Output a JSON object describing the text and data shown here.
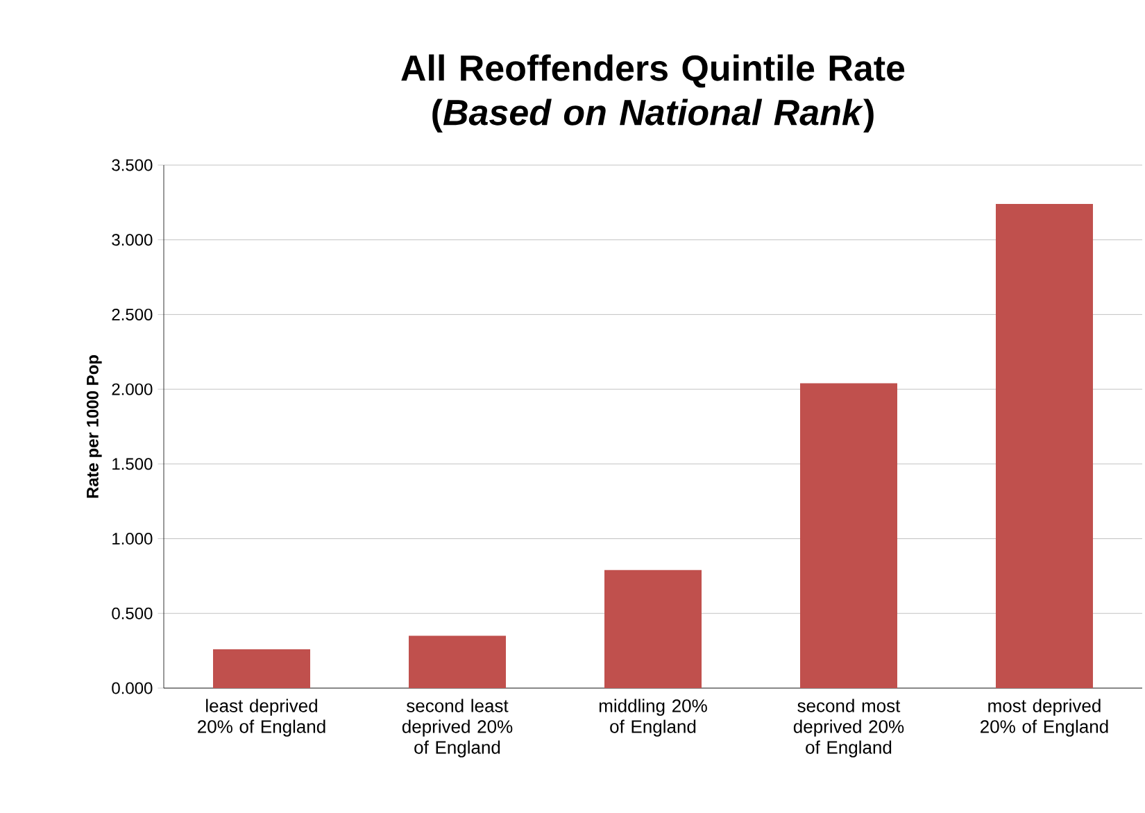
{
  "chart_data": {
    "type": "bar",
    "title": "All Reoffenders Quintile Rate (*Based on National Rank*)",
    "ylabel": "Rate per 1000 Pop",
    "categories": [
      "least deprived 20% of England",
      "second least deprived 20% of England",
      "middling 20% of England",
      "second most deprived 20% of England",
      "most deprived 20% of England"
    ],
    "values": [
      0.26,
      0.35,
      0.79,
      2.04,
      3.24
    ],
    "color": "#c0504d",
    "ylim": [
      0,
      3.5
    ],
    "yticks": [
      {
        "value": 0,
        "label": "0.000"
      },
      {
        "value": 0.5,
        "label": "0.500"
      },
      {
        "value": 1,
        "label": "1.000"
      },
      {
        "value": 1.5,
        "label": "1.500"
      },
      {
        "value": 2,
        "label": "2.000"
      },
      {
        "value": 2.5,
        "label": "2.500"
      },
      {
        "value": 3,
        "label": "3.000"
      },
      {
        "value": 3.5,
        "label": "3.500"
      }
    ],
    "grid": "y"
  }
}
